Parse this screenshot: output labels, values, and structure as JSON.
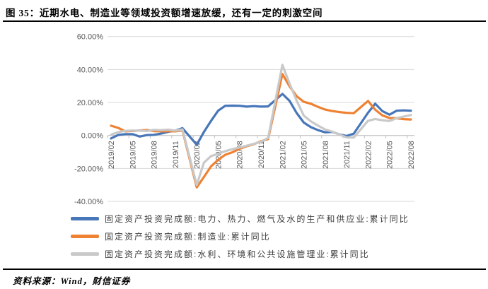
{
  "header": {
    "title": "图 35：近期水电、制造业等领域投资额增速放缓，还有一定的刺激空间"
  },
  "footer": {
    "source": "资料来源：Wind，财信证券"
  },
  "chart_data": {
    "type": "line",
    "title": "",
    "xlabel": "",
    "ylabel": "",
    "ylim": [
      -40,
      60
    ],
    "grid": "horizontal-only",
    "legend_position": "bottom-left",
    "gridline_color": "#d9d9d9",
    "axis_color": "#c0c0c0",
    "axis_label_color": "#595959",
    "y_ticks": [
      "60.00%",
      "40.00%",
      "20.00%",
      "0.00%",
      "-20.00%",
      "-40.00%"
    ],
    "x_ticks": [
      "2019/02",
      "2019/05",
      "2019/08",
      "2019/11",
      "2020/02",
      "2020/05",
      "2020/08",
      "2020/11",
      "2021/02",
      "2021/05",
      "2021/08",
      "2021/11",
      "2022/02",
      "2022/05",
      "2022/08"
    ],
    "x": [
      "2019/02",
      "2019/03",
      "2019/04",
      "2019/05",
      "2019/06",
      "2019/07",
      "2019/08",
      "2019/09",
      "2019/10",
      "2019/11",
      "2019/12",
      "2020/02",
      "2020/03",
      "2020/04",
      "2020/05",
      "2020/06",
      "2020/07",
      "2020/08",
      "2020/09",
      "2020/10",
      "2020/11",
      "2020/12",
      "2021/02",
      "2021/03",
      "2021/04",
      "2021/05",
      "2021/06",
      "2021/07",
      "2021/08",
      "2021/09",
      "2021/10",
      "2021/11",
      "2021/12",
      "2022/02",
      "2022/03",
      "2022/04",
      "2022/05",
      "2022/06",
      "2022/07",
      "2022/08"
    ],
    "unit": "percent, cumulative YoY",
    "series": [
      {
        "name": "固定资产投资完成额:电力、热力、燃气及水的生产和供应业:累计同比",
        "color": "#4776b9",
        "values": [
          -1.8,
          0.3,
          0.8,
          0.8,
          -0.7,
          0.2,
          0.4,
          1.1,
          2.2,
          2.9,
          4.4,
          -5.6,
          2.1,
          8.8,
          15.0,
          18.0,
          18.1,
          18.0,
          17.5,
          17.8,
          17.5,
          17.6,
          25.2,
          21.0,
          13.6,
          7.8,
          5.0,
          3.2,
          1.9,
          2.2,
          0.6,
          -0.3,
          1.1,
          13.8,
          19.3,
          14.8,
          12.6,
          15.0,
          15.2,
          15.0
        ]
      },
      {
        "name": "固定资产投资完成额:制造业:累计同比",
        "color": "#ef8132",
        "values": [
          5.9,
          4.6,
          2.5,
          2.7,
          3.0,
          3.3,
          2.6,
          2.5,
          2.6,
          2.5,
          3.1,
          -31.5,
          -25.2,
          -18.8,
          -14.8,
          -11.7,
          -10.2,
          -8.1,
          -6.5,
          -5.3,
          -3.5,
          -2.2,
          37.3,
          29.8,
          23.8,
          20.4,
          19.2,
          17.3,
          15.7,
          14.8,
          14.2,
          13.7,
          13.5,
          20.9,
          15.6,
          12.2,
          10.6,
          10.4,
          9.9,
          9.7
        ]
      },
      {
        "name": "固定资产投资完成额:水利、环境和公共设施管理业:累计同比",
        "color": "#c9c9c9",
        "values": [
          0.4,
          2.0,
          2.8,
          3.0,
          2.9,
          2.7,
          3.4,
          3.2,
          3.5,
          2.9,
          3.7,
          -30.0,
          -16.5,
          -12.5,
          -11.2,
          -9.5,
          -8.3,
          -7.3,
          -6.2,
          -5.1,
          -3.8,
          -1.5,
          42.8,
          31.5,
          21.0,
          12.0,
          8.5,
          6.0,
          3.6,
          2.3,
          0.5,
          -1.2,
          -1.3,
          8.9,
          10.0,
          9.2,
          8.8,
          10.5,
          11.5,
          12.4
        ]
      }
    ]
  }
}
